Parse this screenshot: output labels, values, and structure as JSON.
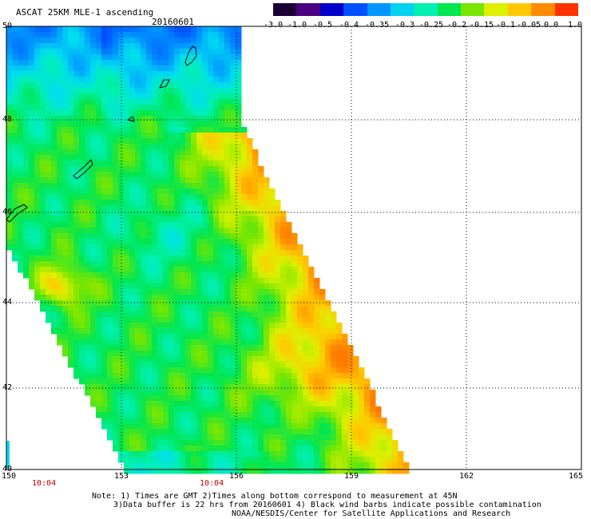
{
  "title": "ASCAT 25KM MLE-1 ascending",
  "date": "20160601",
  "colorbar": {
    "labels": [
      "-3.0",
      "-1.0",
      "-0.5",
      "-0.4",
      "-0.35",
      "-0.3",
      "-0.25",
      "-0.2",
      "-0.15",
      "-0.1",
      "-0.05",
      "0.0",
      "1.0"
    ],
    "colors": [
      "#1a0033",
      "#4b0082",
      "#0000c8",
      "#0050ff",
      "#0096ff",
      "#00d2f0",
      "#00f0b4",
      "#00e650",
      "#78e600",
      "#dcf000",
      "#ffc800",
      "#ff8c00",
      "#ff3200"
    ]
  },
  "axes": {
    "x_ticks": [
      "150",
      "153",
      "156",
      "159",
      "162",
      "165"
    ],
    "y_ticks": [
      "50",
      "48",
      "46",
      "44",
      "42",
      "40"
    ]
  },
  "time_labels": [
    "10:04",
    "10:04"
  ],
  "note": {
    "line1": "Note: 1) Times are GMT 2)Times along bottom correspond to measurement at 45N",
    "line2": "3)Data buffer is 22 hrs from 20160601 4) Black wind barbs indicate possible contamination",
    "line3": "NOAA/NESDIS/Center for Satellite Applications and Research"
  }
}
